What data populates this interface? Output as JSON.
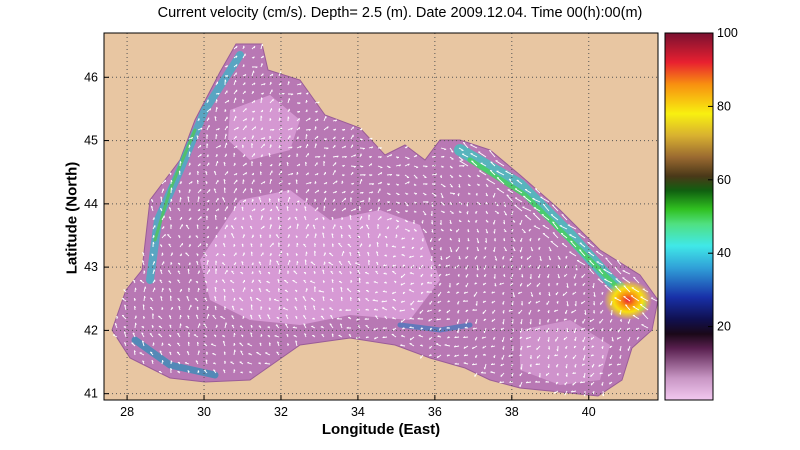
{
  "title": "Current velocity (cm/s). Depth=  2.5 (m). Date 2009.12.04. Time 00(h):00(m)",
  "x_axis": {
    "label": "Longitude (East)",
    "ticks": [
      "28",
      "30",
      "32",
      "34",
      "36",
      "38",
      "40"
    ],
    "tick_values": [
      28,
      30,
      32,
      34,
      36,
      38,
      40
    ],
    "range": [
      27.4,
      41.8
    ]
  },
  "y_axis": {
    "label": "Latitude (North)",
    "ticks": [
      "41",
      "42",
      "43",
      "44",
      "45",
      "46"
    ],
    "tick_values": [
      41,
      42,
      43,
      44,
      45,
      46
    ],
    "range": [
      40.9,
      46.7
    ]
  },
  "colorbar": {
    "ticks": [
      "20",
      "40",
      "60",
      "80",
      "100"
    ],
    "tick_values": [
      20,
      40,
      60,
      80,
      100
    ],
    "range": [
      0,
      100
    ]
  },
  "colors": {
    "land": "#E8C6A2",
    "sea_calm": "#E3A6E2",
    "vectors": "#FFFFFF",
    "grid": "#555555"
  }
}
